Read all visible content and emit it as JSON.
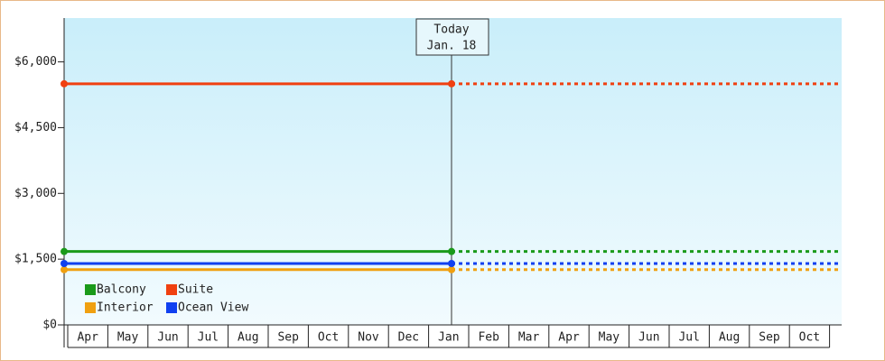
{
  "chart_data": {
    "type": "line",
    "categories": [
      "Apr",
      "May",
      "Jun",
      "Jul",
      "Aug",
      "Sep",
      "Oct",
      "Nov",
      "Dec",
      "Jan",
      "Feb",
      "Mar",
      "Apr",
      "May",
      "Jun",
      "Jul",
      "Aug",
      "Sep",
      "Oct"
    ],
    "annotation": [
      "Today",
      "Jan. 18"
    ],
    "series": [
      {
        "name": "Balcony",
        "color": "#1a9a1a",
        "value": 1675
      },
      {
        "name": "Suite",
        "color": "#f04010",
        "value": 5500
      },
      {
        "name": "Interior",
        "color": "#f0a010",
        "value": 1260
      },
      {
        "name": "Ocean View",
        "color": "#1040f0",
        "value": 1400
      }
    ],
    "ylim": [
      0,
      7000
    ],
    "yticks": [
      {
        "value": 0,
        "label": "$0"
      },
      {
        "value": 1500,
        "label": "$1,500"
      },
      {
        "value": 3000,
        "label": "$3,000"
      },
      {
        "value": 4500,
        "label": "$4,500"
      },
      {
        "value": 6000,
        "label": "$6,000"
      }
    ],
    "legend": "bottom-left"
  }
}
